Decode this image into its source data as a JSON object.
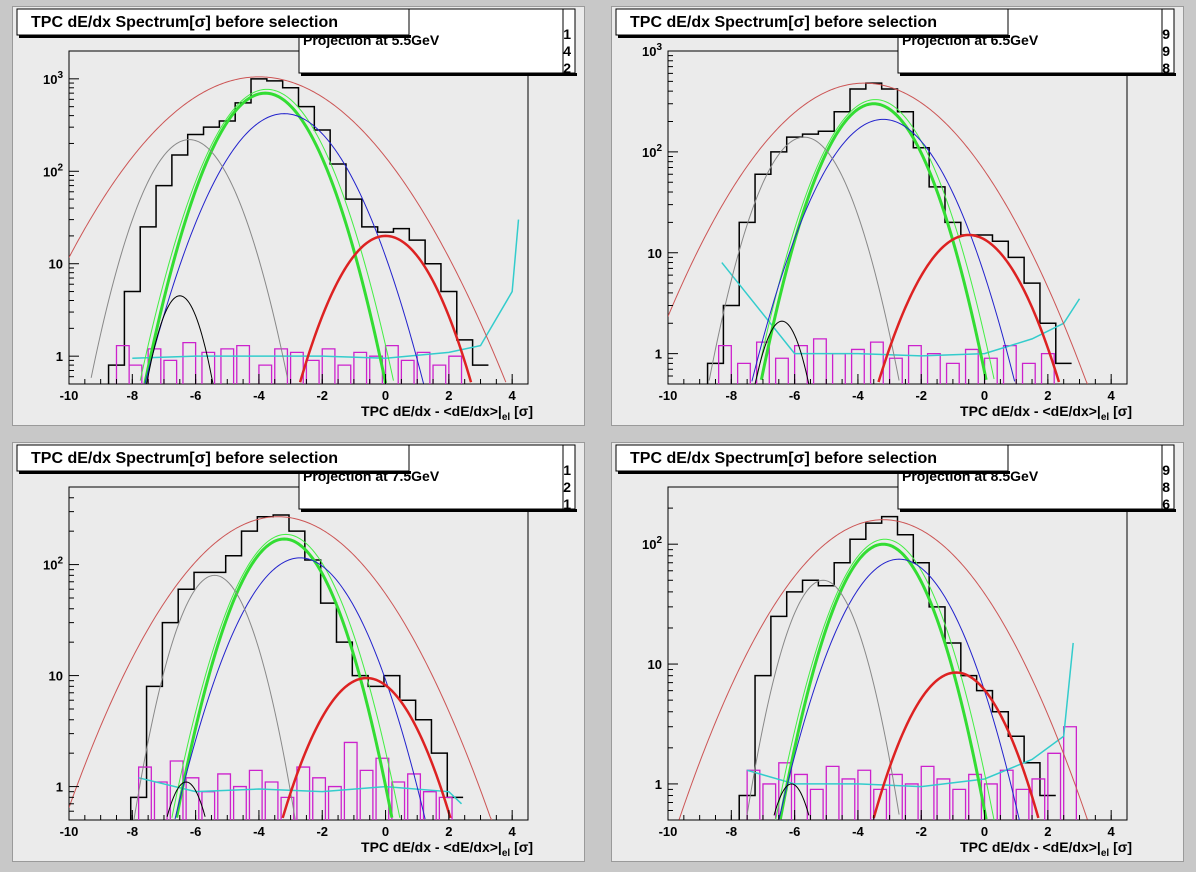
{
  "chart_data": [
    {
      "type": "line",
      "title": "TPC dE/dx Spectrum[σ] before selection",
      "subtitle": "Projection at 5.5GeV",
      "stats_fragments": [
        "1",
        "4",
        "2"
      ],
      "xlabel": "TPC dE/dx - <dE/dx>|el [σ]",
      "xlim": [
        -10,
        4.5
      ],
      "ylim": [
        0.5,
        2000
      ],
      "yscale": "log",
      "xticks": [
        -10,
        -8,
        -6,
        -4,
        -2,
        0,
        2,
        4
      ],
      "yticks": [
        {
          "v": 1,
          "label": "1"
        },
        {
          "v": 10,
          "label": "10"
        },
        {
          "v": 100,
          "label": "10²"
        },
        {
          "v": 1000,
          "label": "10³"
        }
      ],
      "data_hist": {
        "x": [
          -8.5,
          -8,
          -7.5,
          -7,
          -6.5,
          -6,
          -5.5,
          -5,
          -4.5,
          -4,
          -3.5,
          -3,
          -2.5,
          -2,
          -1.5,
          -1,
          -0.5,
          0,
          0.5,
          1,
          1.5,
          2,
          2.5,
          3
        ],
        "y": [
          0.8,
          5,
          25,
          70,
          150,
          250,
          300,
          350,
          550,
          1000,
          950,
          800,
          500,
          280,
          120,
          50,
          25,
          22,
          24,
          18,
          10,
          5,
          1.5,
          0.8
        ]
      },
      "gaussians": [
        {
          "name": "total",
          "color": "#cc5555",
          "width": 1,
          "mu": -4,
          "amp": 1050,
          "sigma": 2.0
        },
        {
          "name": "green",
          "color": "#33dd33",
          "width": 3,
          "mu": -3.8,
          "amp": 700,
          "sigma": 1.0
        },
        {
          "name": "blue",
          "color": "#2222cc",
          "width": 1,
          "mu": -3.2,
          "amp": 420,
          "sigma": 1.2
        },
        {
          "name": "gray",
          "color": "#888888",
          "width": 1,
          "mu": -6.2,
          "amp": 220,
          "sigma": 0.9
        },
        {
          "name": "black",
          "color": "#000000",
          "width": 1,
          "mu": -6.5,
          "amp": 4.5,
          "sigma": 0.5
        },
        {
          "name": "red",
          "color": "#dd2222",
          "width": 2.5,
          "mu": 0,
          "amp": 20,
          "sigma": 1.0
        }
      ],
      "magenta_hist": {
        "x": [
          -8.3,
          -7.9,
          -7.3,
          -6.8,
          -6.2,
          -5.6,
          -5,
          -4.5,
          -3.8,
          -3.3,
          -2.8,
          -2.3,
          -1.8,
          -1.3,
          -0.8,
          -0.3,
          0.2,
          0.7,
          1.2,
          1.7,
          2.2
        ],
        "y": [
          1.3,
          0.8,
          1.2,
          0.9,
          1.4,
          1.1,
          1.2,
          1.3,
          0.8,
          1.2,
          1.1,
          0.9,
          1.2,
          0.8,
          1.1,
          1.0,
          1.3,
          0.9,
          1.1,
          0.8,
          1.0
        ]
      },
      "cyan_line": {
        "x": [
          -8,
          -6,
          -4,
          -2,
          0,
          2,
          3,
          4,
          4.2
        ],
        "y": [
          0.95,
          1.0,
          1.0,
          1.0,
          0.95,
          1.1,
          1.3,
          5,
          30
        ]
      }
    },
    {
      "type": "line",
      "title": "TPC dE/dx Spectrum[σ] before selection",
      "subtitle": "Projection at 6.5GeV",
      "stats_fragments": [
        "9",
        "9",
        "8"
      ],
      "xlabel": "TPC dE/dx - <dE/dx>|el [σ]",
      "xlim": [
        -10,
        4.5
      ],
      "ylim": [
        0.5,
        1000
      ],
      "yscale": "log",
      "xticks": [
        -10,
        -8,
        -6,
        -4,
        -2,
        0,
        2,
        4
      ],
      "yticks": [
        {
          "v": 1,
          "label": "1"
        },
        {
          "v": 10,
          "label": "10"
        },
        {
          "v": 100,
          "label": "10²"
        },
        {
          "v": 1000,
          "label": "10³"
        }
      ],
      "data_hist": {
        "x": [
          -8.5,
          -8,
          -7.5,
          -7,
          -6.5,
          -6,
          -5.5,
          -5,
          -4.5,
          -4,
          -3.5,
          -3,
          -2.5,
          -2,
          -1.5,
          -1,
          -0.5,
          0,
          0.5,
          1,
          1.5,
          2,
          2.5
        ],
        "y": [
          0.8,
          3,
          20,
          60,
          100,
          140,
          150,
          160,
          250,
          420,
          480,
          420,
          250,
          110,
          45,
          20,
          15,
          15,
          13,
          9,
          5,
          2,
          0.8
        ]
      },
      "gaussians": [
        {
          "name": "total",
          "color": "#cc5555",
          "width": 1,
          "mu": -3.8,
          "amp": 480,
          "sigma": 1.9
        },
        {
          "name": "green",
          "color": "#33dd33",
          "width": 3,
          "mu": -3.5,
          "amp": 300,
          "sigma": 1.0
        },
        {
          "name": "blue",
          "color": "#2222cc",
          "width": 1,
          "mu": -3.2,
          "amp": 210,
          "sigma": 1.2
        },
        {
          "name": "gray",
          "color": "#888888",
          "width": 1,
          "mu": -5.7,
          "amp": 140,
          "sigma": 0.9
        },
        {
          "name": "black",
          "color": "#000000",
          "width": 1,
          "mu": -6.4,
          "amp": 2.1,
          "sigma": 0.5
        },
        {
          "name": "red",
          "color": "#dd2222",
          "width": 2.5,
          "mu": -0.5,
          "amp": 15,
          "sigma": 1.1
        }
      ],
      "magenta_hist": {
        "x": [
          -8.2,
          -7.6,
          -7,
          -6.4,
          -5.8,
          -5.2,
          -4.6,
          -4,
          -3.4,
          -2.8,
          -2.2,
          -1.6,
          -1,
          -0.4,
          0.2,
          0.8,
          1.4,
          2
        ],
        "y": [
          1.2,
          0.8,
          1.3,
          0.9,
          1.2,
          1.4,
          1.0,
          1.1,
          1.3,
          0.9,
          1.2,
          1.0,
          0.8,
          1.1,
          0.9,
          1.2,
          0.8,
          1.0
        ]
      },
      "cyan_line": {
        "x": [
          -8.3,
          -6,
          -4,
          -2,
          0,
          1.5,
          2.5,
          3
        ],
        "y": [
          8,
          1.0,
          1.0,
          0.95,
          1.0,
          1.4,
          2,
          3.5
        ]
      }
    },
    {
      "type": "line",
      "title": "TPC dE/dx Spectrum[σ] before selection",
      "subtitle": "Projection at 7.5GeV",
      "stats_fragments": [
        "1",
        "2",
        "1"
      ],
      "xlabel": "TPC dE/dx - <dE/dx>|el [σ]",
      "xlim": [
        -10,
        4.5
      ],
      "ylim": [
        0.5,
        500
      ],
      "yscale": "log",
      "xticks": [
        -10,
        -8,
        -6,
        -4,
        -2,
        0,
        2,
        4
      ],
      "yticks": [
        {
          "v": 1,
          "label": "1"
        },
        {
          "v": 10,
          "label": "10"
        },
        {
          "v": 100,
          "label": "10²"
        }
      ],
      "data_hist": {
        "x": [
          -7.8,
          -7.3,
          -6.8,
          -6.3,
          -5.8,
          -5.3,
          -4.8,
          -4.3,
          -3.8,
          -3.3,
          -2.8,
          -2.3,
          -1.8,
          -1.3,
          -0.8,
          -0.3,
          0.2,
          0.7,
          1.2,
          1.7,
          2.2
        ],
        "y": [
          0.8,
          8,
          30,
          60,
          85,
          85,
          120,
          200,
          270,
          280,
          200,
          110,
          45,
          20,
          10,
          8,
          10,
          6,
          4,
          2,
          0.8
        ]
      },
      "gaussians": [
        {
          "name": "total",
          "color": "#cc5555",
          "width": 1,
          "mu": -3.4,
          "amp": 270,
          "sigma": 1.9
        },
        {
          "name": "green",
          "color": "#33dd33",
          "width": 3,
          "mu": -3.2,
          "amp": 170,
          "sigma": 1.0
        },
        {
          "name": "blue",
          "color": "#2222cc",
          "width": 1,
          "mu": -2.7,
          "amp": 115,
          "sigma": 1.2
        },
        {
          "name": "gray",
          "color": "#888888",
          "width": 1,
          "mu": -5.4,
          "amp": 80,
          "sigma": 0.8
        },
        {
          "name": "black",
          "color": "#000000",
          "width": 1,
          "mu": -6.3,
          "amp": 1.1,
          "sigma": 0.5
        },
        {
          "name": "red",
          "color": "#dd2222",
          "width": 2.5,
          "mu": -0.6,
          "amp": 9.5,
          "sigma": 1.1
        }
      ],
      "magenta_hist": {
        "x": [
          -7.6,
          -7.1,
          -6.6,
          -6.1,
          -5.6,
          -5.1,
          -4.6,
          -4.1,
          -3.6,
          -3.1,
          -2.6,
          -2.1,
          -1.6,
          -1.1,
          -0.6,
          -0.1,
          0.4,
          0.9,
          1.4,
          1.9
        ],
        "y": [
          1.5,
          1.1,
          1.7,
          1.2,
          0.9,
          1.3,
          1.0,
          1.4,
          1.1,
          0.8,
          1.5,
          1.2,
          1.0,
          2.5,
          1.4,
          1.8,
          1.1,
          1.3,
          0.9,
          0.8
        ]
      },
      "cyan_line": {
        "x": [
          -7.8,
          -6,
          -4,
          -2,
          0,
          2,
          2.4
        ],
        "y": [
          1.2,
          0.9,
          0.95,
          0.9,
          1.0,
          0.9,
          0.7
        ]
      }
    },
    {
      "type": "line",
      "title": "TPC dE/dx Spectrum[σ] before selection",
      "subtitle": "Projection at 8.5GeV",
      "stats_fragments": [
        "9",
        "8",
        "6"
      ],
      "xlabel": "TPC dE/dx - <dE/dx>|el [σ]",
      "xlim": [
        -10,
        4.5
      ],
      "ylim": [
        0.5,
        300
      ],
      "yscale": "log",
      "xticks": [
        -10,
        -8,
        -6,
        -4,
        -2,
        0,
        2,
        4
      ],
      "yticks": [
        {
          "v": 1,
          "label": "1"
        },
        {
          "v": 10,
          "label": "10"
        },
        {
          "v": 100,
          "label": "10²"
        }
      ],
      "data_hist": {
        "x": [
          -7.5,
          -7,
          -6.5,
          -6,
          -5.5,
          -5,
          -4.5,
          -4,
          -3.5,
          -3,
          -2.5,
          -2,
          -1.5,
          -1,
          -0.5,
          0,
          0.5,
          1,
          1.5,
          2
        ],
        "y": [
          0.8,
          8,
          25,
          40,
          50,
          45,
          70,
          110,
          150,
          170,
          120,
          70,
          30,
          15,
          8,
          6,
          4,
          2.5,
          1.5,
          0.8
        ]
      },
      "gaussians": [
        {
          "name": "total",
          "color": "#cc5555",
          "width": 1,
          "mu": -3.2,
          "amp": 160,
          "sigma": 1.9
        },
        {
          "name": "green",
          "color": "#33dd33",
          "width": 3,
          "mu": -3.2,
          "amp": 100,
          "sigma": 1.0
        },
        {
          "name": "blue",
          "color": "#2222cc",
          "width": 1,
          "mu": -2.7,
          "amp": 75,
          "sigma": 1.2
        },
        {
          "name": "gray",
          "color": "#888888",
          "width": 1,
          "mu": -5.1,
          "amp": 50,
          "sigma": 0.8
        },
        {
          "name": "black",
          "color": "#000000",
          "width": 1,
          "mu": -6.1,
          "amp": 1.0,
          "sigma": 0.5
        },
        {
          "name": "red",
          "color": "#dd2222",
          "width": 2.5,
          "mu": -0.9,
          "amp": 8.5,
          "sigma": 1.1
        }
      ],
      "magenta_hist": {
        "x": [
          -7.3,
          -6.8,
          -6.3,
          -5.8,
          -5.3,
          -4.8,
          -4.3,
          -3.8,
          -3.3,
          -2.8,
          -2.3,
          -1.8,
          -1.3,
          -0.8,
          -0.3,
          0.2,
          0.7,
          1.2,
          1.7,
          2.2,
          2.7
        ],
        "y": [
          1.3,
          1.0,
          1.5,
          1.2,
          0.9,
          1.4,
          1.1,
          1.3,
          0.9,
          1.2,
          1.0,
          1.4,
          1.1,
          0.9,
          1.2,
          1.0,
          1.3,
          0.9,
          1.1,
          1.8,
          3
        ]
      },
      "cyan_line": {
        "x": [
          -7.5,
          -6,
          -4,
          -2,
          0,
          1.5,
          2.5,
          2.8
        ],
        "y": [
          1.3,
          1.0,
          1.0,
          0.95,
          1.1,
          1.6,
          2.5,
          15
        ]
      }
    }
  ]
}
